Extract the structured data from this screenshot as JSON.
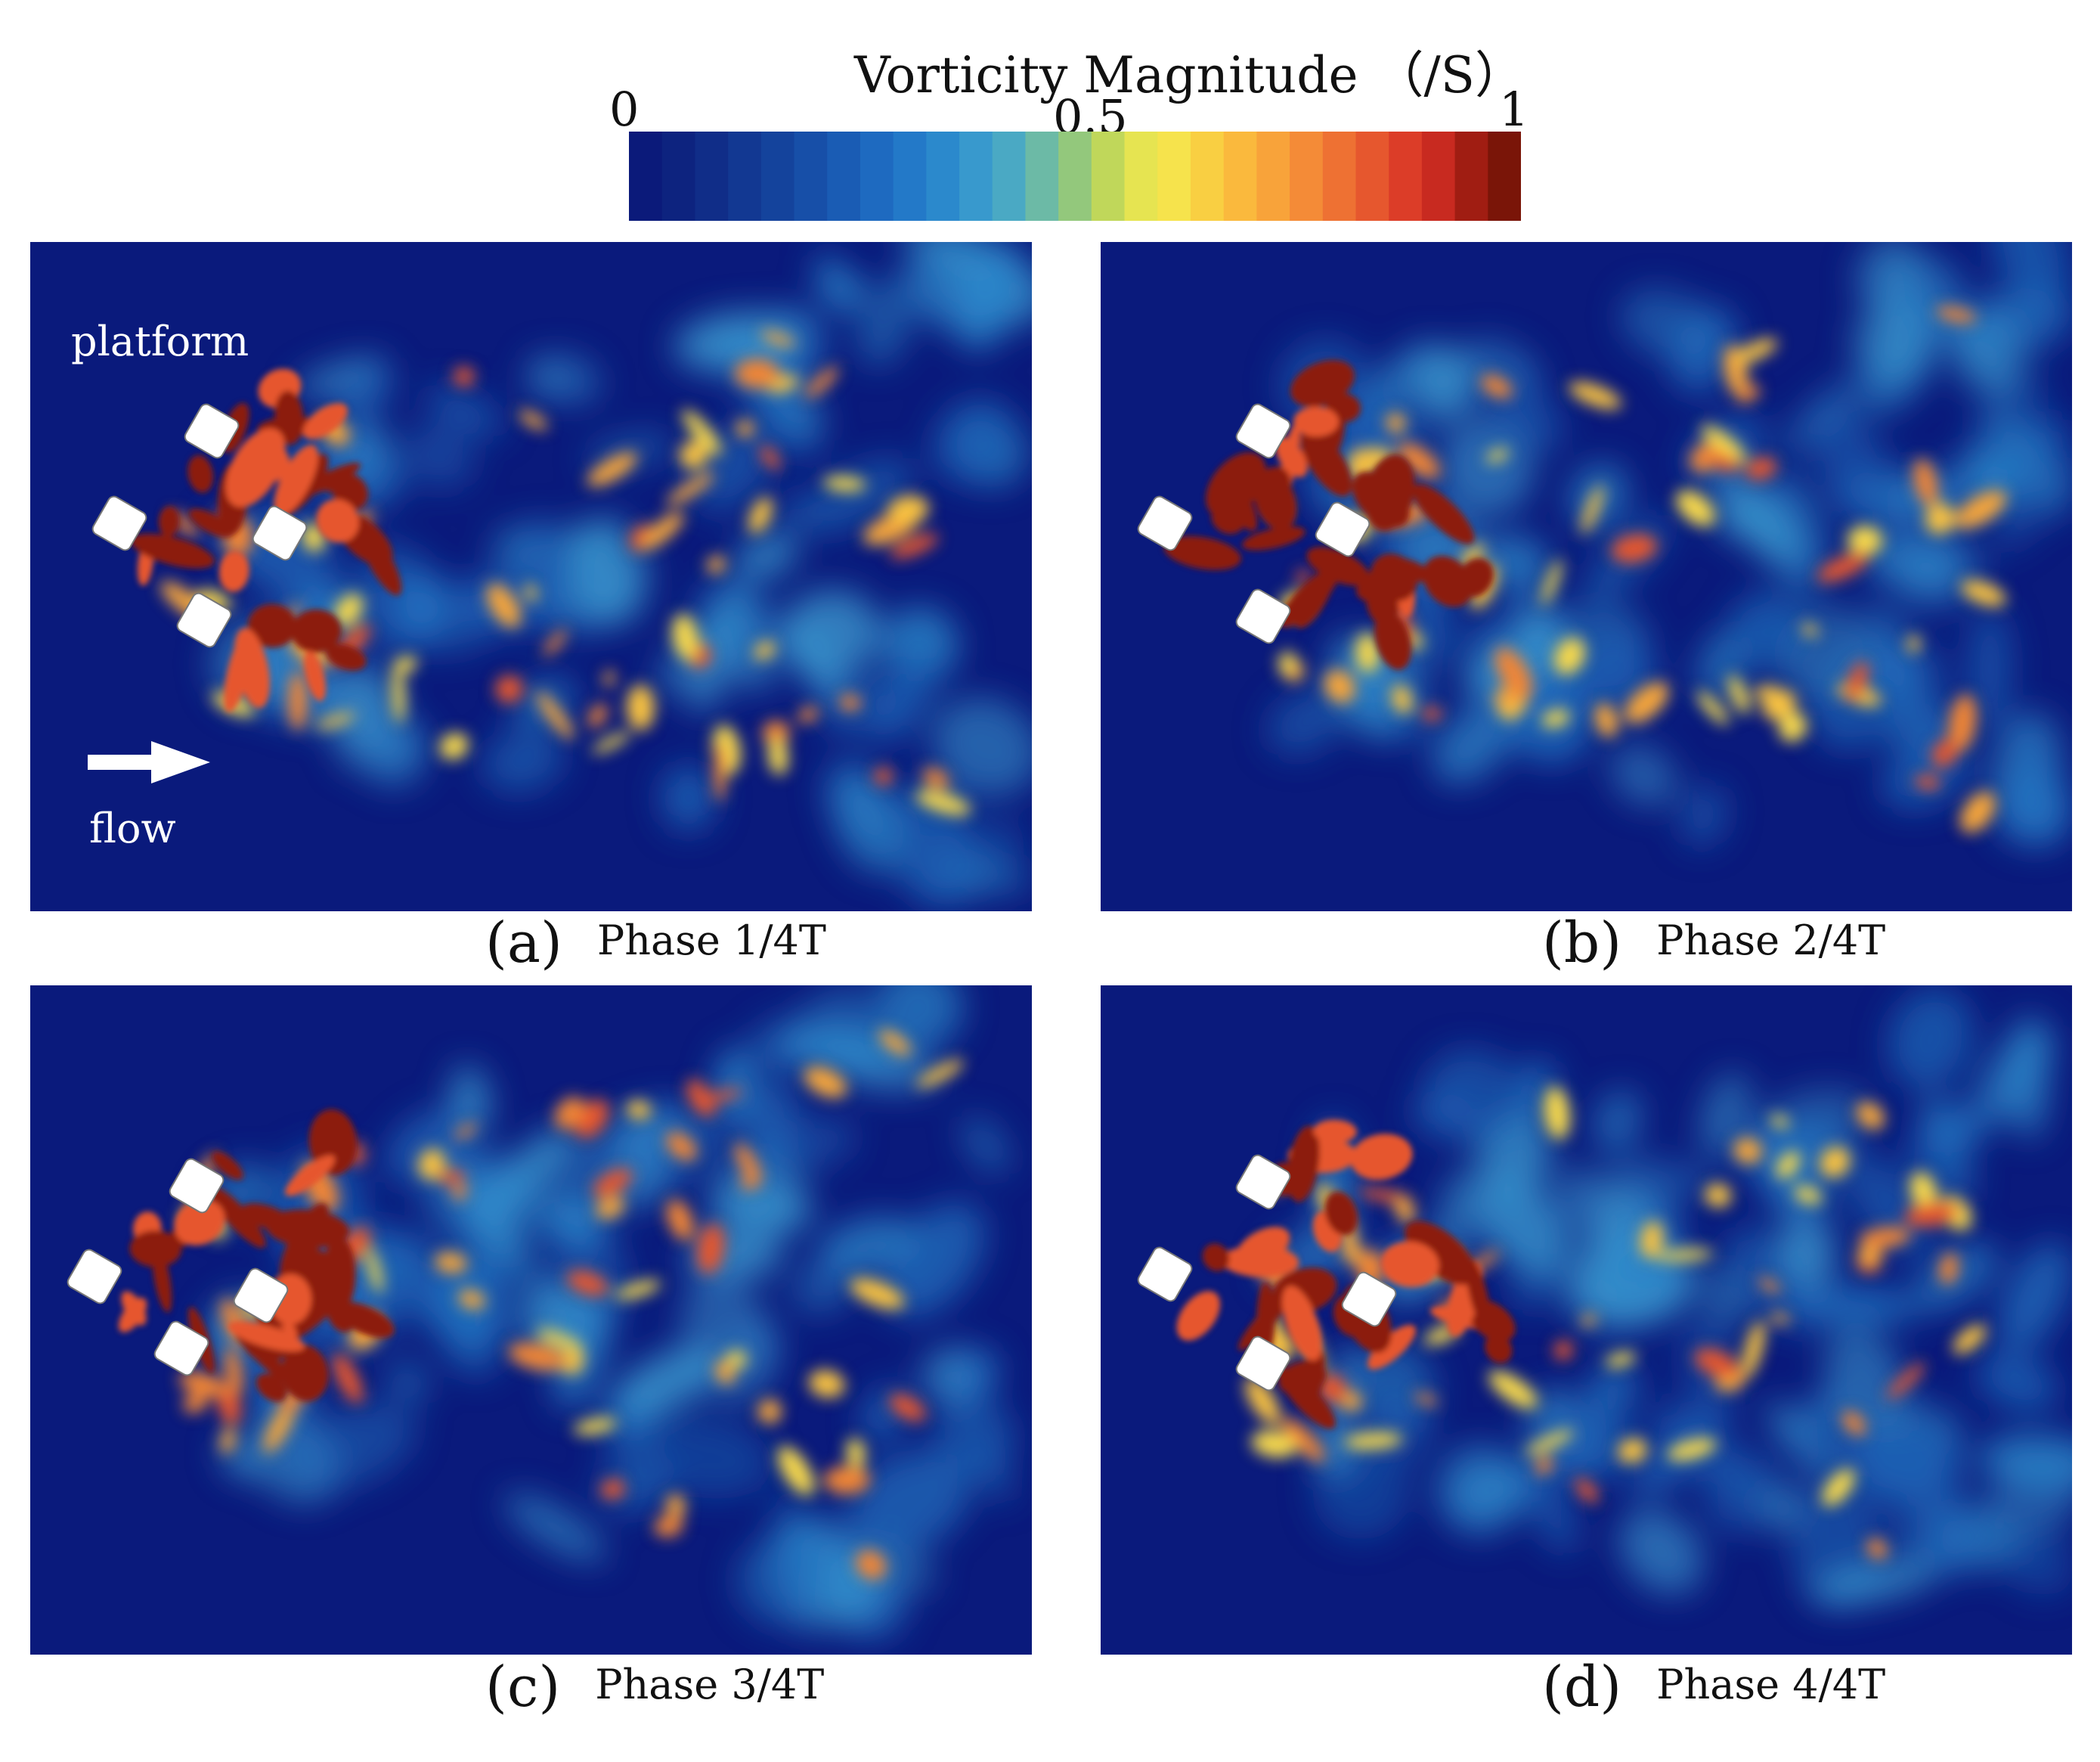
{
  "colorbar": {
    "title": "Vorticity Magnitude （/S）",
    "tick_min": "0",
    "tick_mid": "0.5",
    "tick_max": "1",
    "colors": [
      "#0b1a7a",
      "#0d237f",
      "#102d88",
      "#123892",
      "#14439c",
      "#174fa8",
      "#1a5cb4",
      "#1e6ac0",
      "#2379c8",
      "#2b89cc",
      "#3899cd",
      "#4aa9c4",
      "#6cbaa6",
      "#93c87c",
      "#c0d75a",
      "#e6e451",
      "#f6e34c",
      "#f9cf42",
      "#fab93d",
      "#f8a33a",
      "#f48b37",
      "#ee7133",
      "#e6572e",
      "#dc3d28",
      "#c82a20",
      "#a01d12",
      "#7a1508"
    ]
  },
  "panels": [
    {
      "letter": "(a)",
      "phase": "Phase 1/4T"
    },
    {
      "letter": "(b)",
      "phase": "Phase 2/4T"
    },
    {
      "letter": "(c)",
      "phase": "Phase 3/4T"
    },
    {
      "letter": "(d)",
      "phase": "Phase 4/4T"
    }
  ],
  "labels": {
    "platform": "platform",
    "flow": "flow"
  }
}
